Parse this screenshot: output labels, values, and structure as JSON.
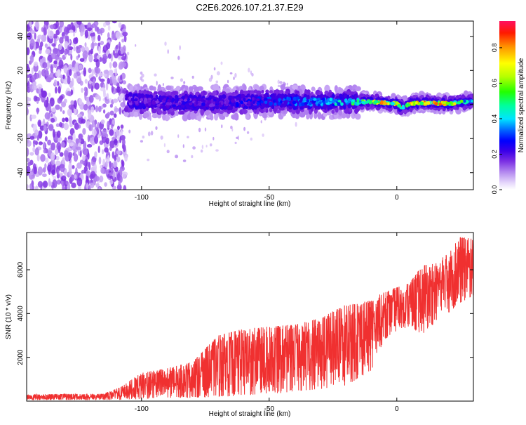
{
  "title": "C2E6.2026.107.21.37.E29",
  "chart_data": [
    {
      "type": "heatmap",
      "title": "C2E6.2026.107.21.37.E29",
      "xlabel": "Height of straight line (km)",
      "ylabel": "Frequency (Hz)",
      "xlim": [
        -145,
        30
      ],
      "ylim": [
        -50,
        49
      ],
      "xticks": [
        -100,
        -50,
        0
      ],
      "yticks": [
        -40,
        -20,
        0,
        20,
        40
      ],
      "colorbar": {
        "label": "Normalized spectral amplitude",
        "range": [
          0,
          0.95
        ],
        "ticks": [
          "0.0",
          "0.2",
          "0.4",
          "0.6",
          "0.8"
        ],
        "colormap": [
          "#ffffff",
          "#c9a8f5",
          "#8a40e6",
          "#5a00d8",
          "#0000ff",
          "#0070ff",
          "#00e5ff",
          "#00ff7f",
          "#55ff00",
          "#ffff00",
          "#ffa000",
          "#ff2a00",
          "#ff1060"
        ]
      },
      "trace": {
        "x": [
          -107,
          -100,
          -90,
          -80,
          -70,
          -60,
          -50,
          -40,
          -30,
          -20,
          -10,
          0,
          2,
          5,
          10,
          20,
          30
        ],
        "freq_hz": [
          3,
          1.5,
          1,
          1.2,
          1.2,
          1.5,
          2,
          1.7,
          1.6,
          1.6,
          1.6,
          0.6,
          -2,
          0.4,
          1,
          0.6,
          2
        ],
        "peak_amplitude": [
          0.3,
          0.3,
          0.3,
          0.32,
          0.32,
          0.35,
          0.4,
          0.45,
          0.5,
          0.6,
          0.9,
          0.9,
          0.9,
          0.9,
          0.9,
          0.9,
          0.5
        ]
      },
      "noise_region_x": [
        -145,
        -106
      ]
    },
    {
      "type": "line",
      "xlabel": "Height of straight line (km)",
      "ylabel": "SNR (10 * v/v)",
      "xlim": [
        -145,
        30
      ],
      "ylim": [
        0,
        7700
      ],
      "xticks": [
        -100,
        -50,
        0
      ],
      "yticks": [
        2000,
        4000,
        6000
      ],
      "series": [
        {
          "color": "#f03030",
          "x": [
            -145,
            -130,
            -115,
            -108,
            -100,
            -90,
            -80,
            -70,
            -60,
            -50,
            -40,
            -30,
            -20,
            -10,
            -5,
            0,
            5,
            10,
            15,
            20,
            25,
            30
          ],
          "envelope_low": [
            50,
            50,
            50,
            50,
            100,
            150,
            150,
            200,
            250,
            300,
            450,
            550,
            700,
            1400,
            2800,
            3200,
            3400,
            3000,
            3600,
            4000,
            4500,
            4800
          ],
          "envelope_high": [
            300,
            330,
            330,
            650,
            1300,
            1500,
            1800,
            3000,
            3300,
            3400,
            3500,
            3800,
            4400,
            4600,
            5000,
            5200,
            5400,
            6200,
            6300,
            6800,
            7500,
            7400
          ]
        }
      ]
    }
  ]
}
